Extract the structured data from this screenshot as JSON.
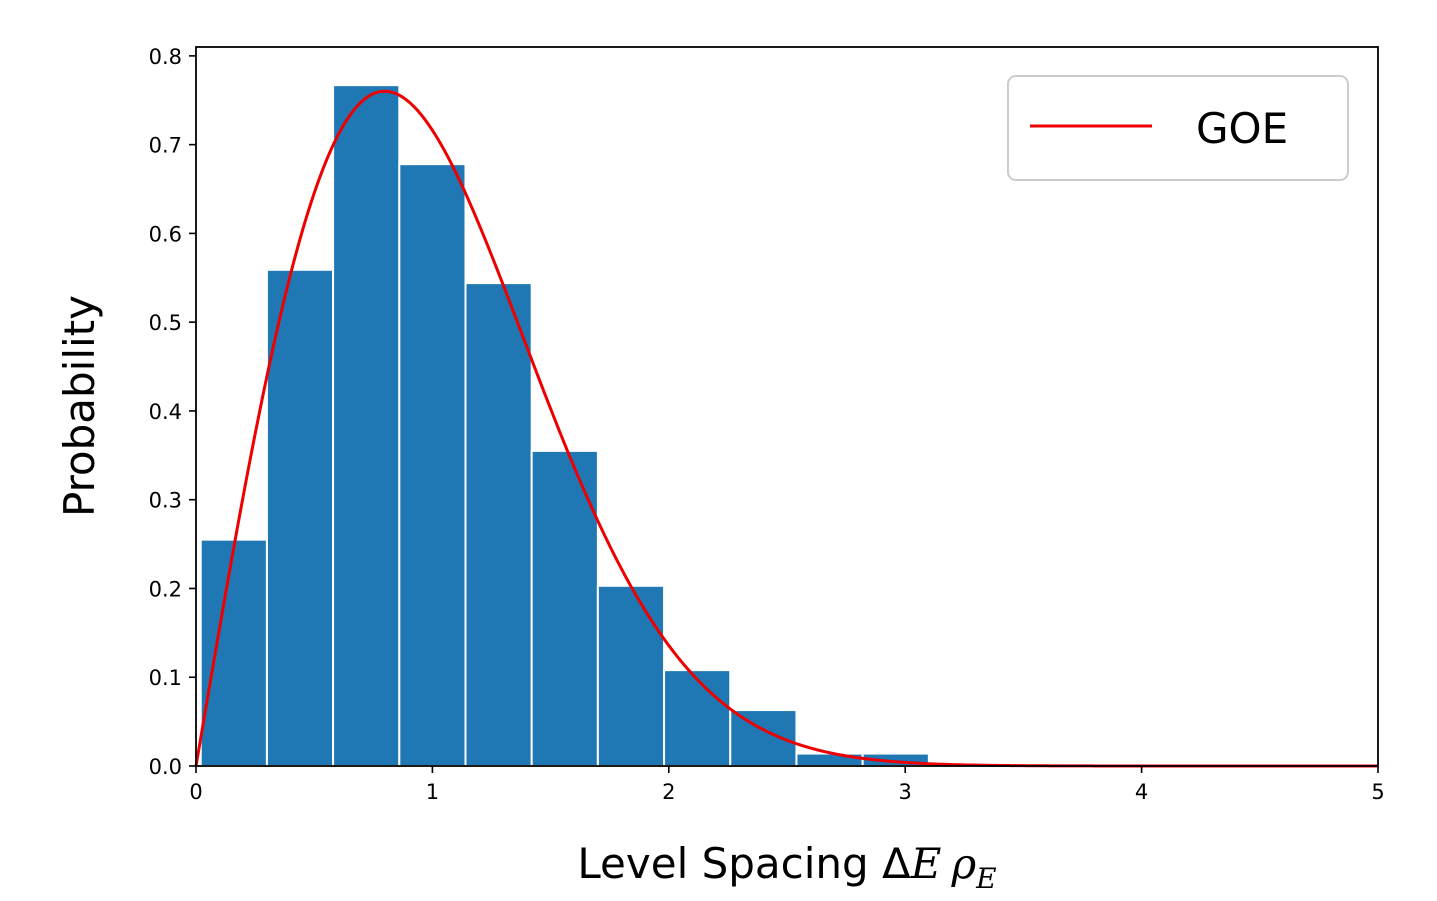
{
  "chart_data": {
    "type": "bar",
    "title": "",
    "xlabel": {
      "text": "Level Spacing ",
      "delta": "Δ",
      "E": "E",
      "rho": "ρ",
      "sub": "E"
    },
    "ylabel": "Probability",
    "xlim": [
      0,
      5
    ],
    "ylim": [
      0,
      0.81
    ],
    "x_ticks": [
      0,
      1,
      2,
      3,
      4,
      5
    ],
    "x_tick_labels": [
      "0",
      "1",
      "2",
      "3",
      "4",
      "5"
    ],
    "y_ticks": [
      0.0,
      0.1,
      0.2,
      0.3,
      0.4,
      0.5,
      0.6,
      0.7,
      0.8
    ],
    "y_tick_labels": [
      "0.0",
      "0.1",
      "0.2",
      "0.3",
      "0.4",
      "0.5",
      "0.6",
      "0.7",
      "0.8"
    ],
    "bin_width": 0.28,
    "bins": [
      {
        "x0": 0.02,
        "x1": 0.3,
        "value": 0.255
      },
      {
        "x0": 0.3,
        "x1": 0.58,
        "value": 0.559
      },
      {
        "x0": 0.58,
        "x1": 0.86,
        "value": 0.767
      },
      {
        "x0": 0.86,
        "x1": 1.14,
        "value": 0.678
      },
      {
        "x0": 1.14,
        "x1": 1.42,
        "value": 0.544
      },
      {
        "x0": 1.42,
        "x1": 1.7,
        "value": 0.355
      },
      {
        "x0": 1.7,
        "x1": 1.98,
        "value": 0.203
      },
      {
        "x0": 1.98,
        "x1": 2.26,
        "value": 0.108
      },
      {
        "x0": 2.26,
        "x1": 2.54,
        "value": 0.063
      },
      {
        "x0": 2.54,
        "x1": 2.82,
        "value": 0.014
      },
      {
        "x0": 2.82,
        "x1": 3.1,
        "value": 0.014
      }
    ],
    "bar_color": "#1f77b4",
    "curve": {
      "name": "GOE",
      "color": "#ee0000",
      "formula": "P(s) = (pi/2) * s * exp(-pi*s^2/4)"
    },
    "legend": {
      "position": "top-right",
      "label": "GOE"
    },
    "grid": false
  }
}
